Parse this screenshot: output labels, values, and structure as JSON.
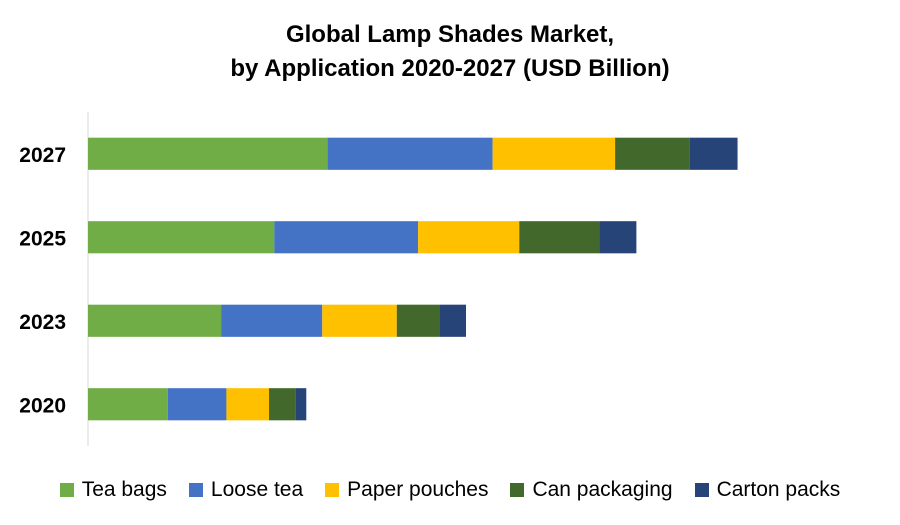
{
  "chart_data": {
    "type": "bar",
    "orientation": "horizontal",
    "stacked": true,
    "title_lines": [
      "Global Lamp Shades Market,",
      "by Application 2020-2027 (USD Billion)"
    ],
    "categories": [
      "2027",
      "2025",
      "2023",
      "2020"
    ],
    "series": [
      {
        "name": "Tea bags",
        "color": "#70ad47",
        "values": [
          9.0,
          7.0,
          5.0,
          3.0
        ]
      },
      {
        "name": "Loose tea",
        "color": "#4472c4",
        "values": [
          6.2,
          5.4,
          3.8,
          2.2
        ]
      },
      {
        "name": "Paper pouches",
        "color": "#ffc000",
        "values": [
          4.6,
          3.8,
          2.8,
          1.6
        ]
      },
      {
        "name": "Can packaging",
        "color": "#43682b",
        "values": [
          2.8,
          3.0,
          1.6,
          1.0
        ]
      },
      {
        "name": "Carton packs",
        "color": "#264478",
        "values": [
          1.8,
          1.4,
          1.0,
          0.4
        ]
      }
    ],
    "xlim": [
      0,
      29
    ],
    "grid": false,
    "legend_position": "bottom"
  }
}
